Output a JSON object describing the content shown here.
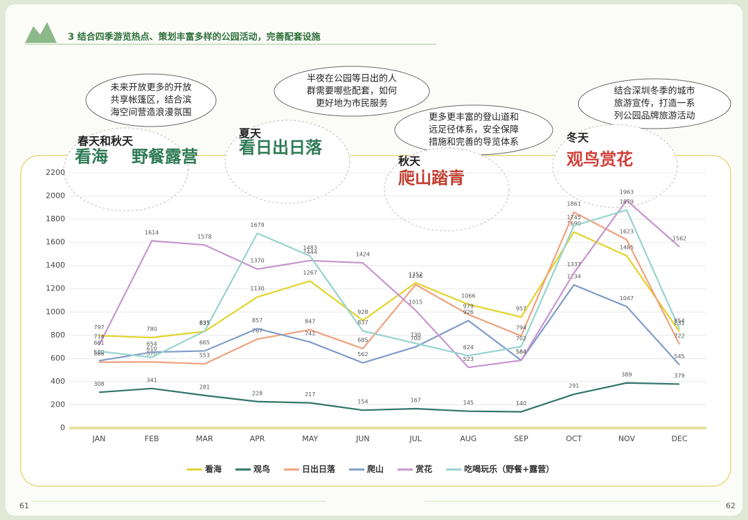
{
  "header": {
    "title": "3 结合四季游览热点、策划丰富多样的公园活动，完善配套设施"
  },
  "bubbles": [
    {
      "lines": [
        "未来开放更多的开放",
        "共享帐篷区，结合滨",
        "海空间营造浪漫氛围"
      ]
    },
    {
      "lines": [
        "半夜在公园等日出的人",
        "群需要哪些配套，如何",
        "更好地为市民服务"
      ]
    },
    {
      "lines": [
        "更多更丰富的登山道和",
        "远足径体系，安全保障",
        "措施和完善的导览体系"
      ]
    },
    {
      "lines": [
        "结合深圳冬季的城市",
        "旅游宣传，打造一系",
        "列公园品牌旅游活动"
      ]
    }
  ],
  "seasons": [
    {
      "season": "春天和秋天",
      "activity": [
        "看海",
        "野餐露营"
      ]
    },
    {
      "season": "夏天",
      "activity": [
        "看日出日落"
      ]
    },
    {
      "season": "秋天",
      "activity": [
        "爬山踏青"
      ]
    },
    {
      "season": "冬天",
      "activity": [
        "观鸟赏花"
      ]
    }
  ],
  "page_numbers": [
    "61",
    "62"
  ],
  "chart_data": {
    "type": "line",
    "categories": [
      "JAN",
      "FEB",
      "MAR",
      "APR",
      "MAY",
      "JUN",
      "JUL",
      "AUG",
      "SEP",
      "OCT",
      "NOV",
      "DEC"
    ],
    "ylim": [
      0,
      2200
    ],
    "yticks": [
      0,
      200,
      400,
      600,
      800,
      1000,
      1200,
      1400,
      1600,
      1800,
      2000,
      2200
    ],
    "grid": true,
    "legend": "bottom",
    "series": [
      {
        "name": "看海",
        "color": "#e3d229",
        "values": [
          797,
          780,
          833,
          1130,
          1267,
          928,
          1252,
          1066,
          957,
          1690,
          1485,
          831
        ]
      },
      {
        "name": "观鸟",
        "color": "#2f7467",
        "values": [
          308,
          341,
          281,
          228,
          217,
          154,
          167,
          145,
          140,
          291,
          389,
          379
        ]
      },
      {
        "name": "日出日落",
        "color": "#f0a07c",
        "values": [
          568,
          570,
          553,
          767,
          847,
          685,
          1236,
          979,
          794,
          1861,
          1623,
          722
        ]
      },
      {
        "name": "爬山",
        "color": "#7f9bc8",
        "values": [
          580,
          654,
          665,
          857,
          741,
          562,
          700,
          926,
          584,
          1234,
          1047,
          545
        ]
      },
      {
        "name": "赏花",
        "color": "#c894cf",
        "values": [
          714,
          1614,
          1578,
          1370,
          1444,
          1424,
          1015,
          523,
          584,
          1337,
          1963,
          1562
        ]
      },
      {
        "name": "吃喝玩乐（野餐+露营）",
        "color": "#96d3cd",
        "values": [
          661,
          610,
          835,
          1679,
          1483,
          837,
          730,
          624,
          702,
          1745,
          1879,
          854
        ]
      }
    ]
  }
}
